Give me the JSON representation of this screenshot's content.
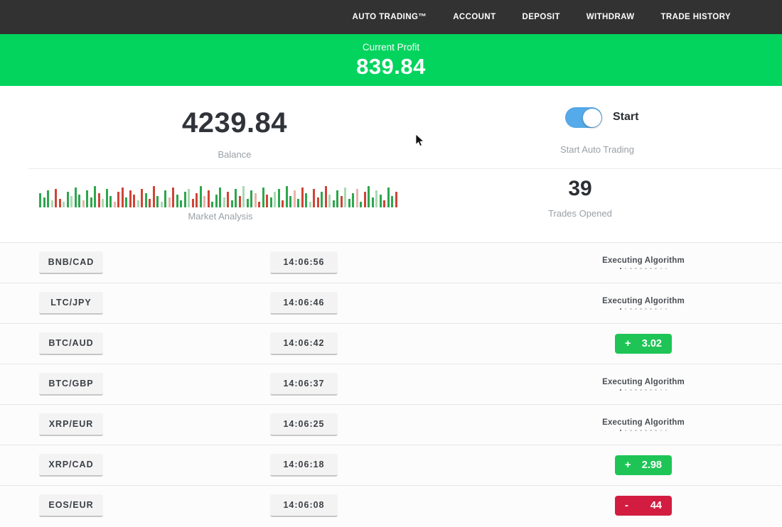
{
  "nav": {
    "items": [
      {
        "label": "AUTO TRADING™"
      },
      {
        "label": "ACCOUNT"
      },
      {
        "label": "DEPOSIT"
      },
      {
        "label": "WITHDRAW"
      },
      {
        "label": "TRADE HISTORY"
      }
    ]
  },
  "banner": {
    "label": "Current Profit",
    "value": "839.84"
  },
  "stats": {
    "balance_value": "4239.84",
    "balance_label": "Balance",
    "toggle_label": "Start",
    "toggle_sub": "Start Auto Trading",
    "toggle_on": true
  },
  "market": {
    "label": "Market Analysis",
    "trades_opened_value": "39",
    "trades_opened_label": "Trades Opened",
    "palette": {
      "g": "#2ea64d",
      "r": "#cf4436",
      "G": "#a8d9b4",
      "R": "#e8b3ac"
    },
    "bars": [
      [
        20,
        "g"
      ],
      [
        14,
        "g"
      ],
      [
        24,
        "g"
      ],
      [
        10,
        "G"
      ],
      [
        26,
        "r"
      ],
      [
        12,
        "r"
      ],
      [
        8,
        "G"
      ],
      [
        22,
        "g"
      ],
      [
        16,
        "G"
      ],
      [
        28,
        "g"
      ],
      [
        18,
        "g"
      ],
      [
        10,
        "R"
      ],
      [
        24,
        "g"
      ],
      [
        14,
        "g"
      ],
      [
        30,
        "g"
      ],
      [
        20,
        "r"
      ],
      [
        12,
        "G"
      ],
      [
        26,
        "g"
      ],
      [
        16,
        "g"
      ],
      [
        8,
        "R"
      ],
      [
        22,
        "r"
      ],
      [
        28,
        "r"
      ],
      [
        14,
        "g"
      ],
      [
        24,
        "r"
      ],
      [
        18,
        "r"
      ],
      [
        10,
        "G"
      ],
      [
        26,
        "r"
      ],
      [
        20,
        "g"
      ],
      [
        12,
        "r"
      ],
      [
        30,
        "r"
      ],
      [
        16,
        "g"
      ],
      [
        8,
        "G"
      ],
      [
        24,
        "g"
      ],
      [
        14,
        "R"
      ],
      [
        28,
        "r"
      ],
      [
        18,
        "g"
      ],
      [
        10,
        "g"
      ],
      [
        22,
        "g"
      ],
      [
        26,
        "G"
      ],
      [
        12,
        "r"
      ],
      [
        20,
        "r"
      ],
      [
        30,
        "g"
      ],
      [
        16,
        "R"
      ],
      [
        24,
        "r"
      ],
      [
        8,
        "g"
      ],
      [
        18,
        "g"
      ],
      [
        28,
        "g"
      ],
      [
        14,
        "G"
      ],
      [
        22,
        "r"
      ],
      [
        10,
        "g"
      ],
      [
        26,
        "g"
      ],
      [
        16,
        "r"
      ],
      [
        30,
        "G"
      ],
      [
        12,
        "g"
      ],
      [
        24,
        "g"
      ],
      [
        20,
        "R"
      ],
      [
        8,
        "r"
      ],
      [
        28,
        "g"
      ],
      [
        18,
        "r"
      ],
      [
        14,
        "g"
      ],
      [
        22,
        "G"
      ],
      [
        26,
        "g"
      ],
      [
        10,
        "r"
      ],
      [
        30,
        "g"
      ],
      [
        16,
        "g"
      ],
      [
        24,
        "R"
      ],
      [
        12,
        "g"
      ],
      [
        28,
        "r"
      ],
      [
        20,
        "g"
      ],
      [
        8,
        "G"
      ],
      [
        26,
        "r"
      ],
      [
        14,
        "r"
      ],
      [
        22,
        "g"
      ],
      [
        30,
        "r"
      ],
      [
        18,
        "G"
      ],
      [
        10,
        "g"
      ],
      [
        24,
        "g"
      ],
      [
        16,
        "r"
      ],
      [
        28,
        "G"
      ],
      [
        12,
        "g"
      ],
      [
        20,
        "g"
      ],
      [
        26,
        "R"
      ],
      [
        8,
        "g"
      ],
      [
        22,
        "r"
      ],
      [
        30,
        "g"
      ],
      [
        14,
        "g"
      ],
      [
        24,
        "G"
      ],
      [
        18,
        "g"
      ],
      [
        10,
        "r"
      ],
      [
        28,
        "g"
      ],
      [
        16,
        "g"
      ],
      [
        22,
        "r"
      ]
    ]
  },
  "trades": {
    "executing_label": "Executing Algorithm",
    "rows": [
      {
        "pair": "BNB/CAD",
        "time": "14:06:56",
        "status": "executing",
        "sign": "",
        "result": ""
      },
      {
        "pair": "LTC/JPY",
        "time": "14:06:46",
        "status": "executing",
        "sign": "",
        "result": ""
      },
      {
        "pair": "BTC/AUD",
        "time": "14:06:42",
        "status": "profit",
        "sign": "+",
        "result": "3.02"
      },
      {
        "pair": "BTC/GBP",
        "time": "14:06:37",
        "status": "executing",
        "sign": "",
        "result": ""
      },
      {
        "pair": "XRP/EUR",
        "time": "14:06:25",
        "status": "executing",
        "sign": "",
        "result": ""
      },
      {
        "pair": "XRP/CAD",
        "time": "14:06:18",
        "status": "profit",
        "sign": "+",
        "result": "2.98"
      },
      {
        "pair": "EOS/EUR",
        "time": "14:06:08",
        "status": "loss",
        "sign": "-",
        "result": "44"
      }
    ]
  },
  "colors": {
    "accent_green": "#02d45e",
    "badge_green": "#1ec556",
    "badge_red": "#d21d41",
    "toggle_blue": "#55aae9",
    "nav_bg": "#323232"
  }
}
